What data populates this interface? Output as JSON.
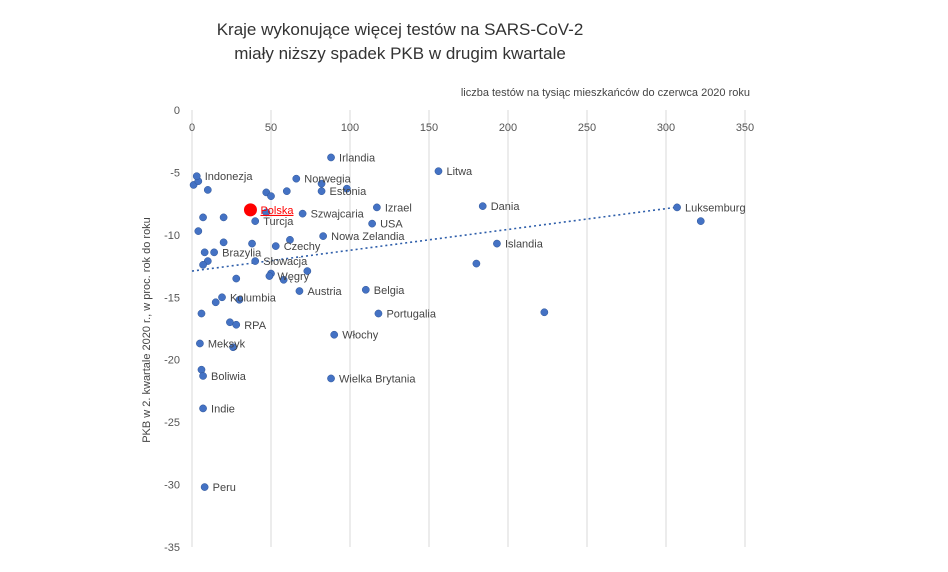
{
  "chart_data": {
    "type": "scatter",
    "title_lines": [
      "Kraje wykonujące więcej testów na SARS-CoV-2",
      "miały niższy spadek PKB w drugim kwartale"
    ],
    "xlabel": "liczba testów na tysiąc mieszkańców do czerwca 2020 roku",
    "ylabel": "PKB w 2. kwartale 2020 r., w proc. rok do roku",
    "xlim": [
      0,
      350
    ],
    "ylim": [
      -35,
      0
    ],
    "xticks": [
      0,
      50,
      100,
      150,
      200,
      250,
      300,
      350
    ],
    "yticks": [
      0,
      -5,
      -10,
      -15,
      -20,
      -25,
      -30,
      -35
    ],
    "grid": "vertical",
    "colors": {
      "point": "#4472C4",
      "highlight": "#FF0000",
      "trend": "#2E5EAA",
      "grid": "#D9D9D9"
    },
    "trendline": {
      "x": [
        0,
        306
      ],
      "y": [
        -12.9,
        -7.8
      ]
    },
    "labeled_points": [
      {
        "name": "Irlandia",
        "x": 88,
        "y": -3.8
      },
      {
        "name": "Litwa",
        "x": 156,
        "y": -4.9
      },
      {
        "name": "Indonezja",
        "x": 3,
        "y": -5.3
      },
      {
        "name": "Norwegia",
        "x": 66,
        "y": -5.5
      },
      {
        "name": "Estonia",
        "x": 82,
        "y": -6.5
      },
      {
        "name": "Izrael",
        "x": 117,
        "y": -7.8
      },
      {
        "name": "Dania",
        "x": 184,
        "y": -7.7
      },
      {
        "name": "Luksemburg",
        "x": 307,
        "y": -7.8
      },
      {
        "name": "Szwajcaria",
        "x": 70,
        "y": -8.3
      },
      {
        "name": "Turcja",
        "x": 40,
        "y": -8.9
      },
      {
        "name": "USA",
        "x": 114,
        "y": -9.1
      },
      {
        "name": "Nowa Zelandia",
        "x": 83,
        "y": -10.1
      },
      {
        "name": "Islandia",
        "x": 193,
        "y": -10.7
      },
      {
        "name": "Czechy",
        "x": 53,
        "y": -10.9
      },
      {
        "name": "Brazylia",
        "x": 14,
        "y": -11.4
      },
      {
        "name": "Słowacja",
        "x": 40,
        "y": -12.1
      },
      {
        "name": "Węgry",
        "x": 49,
        "y": -13.3
      },
      {
        "name": "Austria",
        "x": 68,
        "y": -14.5
      },
      {
        "name": "Belgia",
        "x": 110,
        "y": -14.4
      },
      {
        "name": "Kolumbia",
        "x": 19,
        "y": -15.0
      },
      {
        "name": "Portugalia",
        "x": 118,
        "y": -16.3
      },
      {
        "name": "RPA",
        "x": 28,
        "y": -17.2
      },
      {
        "name": "Włochy",
        "x": 90,
        "y": -18.0
      },
      {
        "name": "Meksyk",
        "x": 5,
        "y": -18.7
      },
      {
        "name": "Boliwia",
        "x": 7,
        "y": -21.3
      },
      {
        "name": "Wielka Brytania",
        "x": 88,
        "y": -21.5
      },
      {
        "name": "Indie",
        "x": 7,
        "y": -23.9
      },
      {
        "name": "Peru",
        "x": 8,
        "y": -30.2
      }
    ],
    "highlight_point": {
      "name": "Polska",
      "x": 37,
      "y": -8.0
    },
    "unlabeled_points": [
      {
        "x": 1,
        "y": -6.0
      },
      {
        "x": 4,
        "y": -5.7
      },
      {
        "x": 10,
        "y": -6.4
      },
      {
        "x": 47,
        "y": -6.6
      },
      {
        "x": 50,
        "y": -6.9
      },
      {
        "x": 60,
        "y": -6.5
      },
      {
        "x": 82,
        "y": -5.9
      },
      {
        "x": 98,
        "y": -6.3
      },
      {
        "x": 7,
        "y": -8.6
      },
      {
        "x": 20,
        "y": -8.6
      },
      {
        "x": 47,
        "y": -8.2
      },
      {
        "x": 4,
        "y": -9.7
      },
      {
        "x": 20,
        "y": -10.6
      },
      {
        "x": 38,
        "y": -10.7
      },
      {
        "x": 62,
        "y": -10.4
      },
      {
        "x": 8,
        "y": -11.4
      },
      {
        "x": 10,
        "y": -12.1
      },
      {
        "x": 7,
        "y": -12.4
      },
      {
        "x": 28,
        "y": -13.5
      },
      {
        "x": 50,
        "y": -13.1
      },
      {
        "x": 58,
        "y": -13.6
      },
      {
        "x": 73,
        "y": -12.9
      },
      {
        "x": 15,
        "y": -15.4
      },
      {
        "x": 30,
        "y": -15.2
      },
      {
        "x": 24,
        "y": -17.0
      },
      {
        "x": 6,
        "y": -16.3
      },
      {
        "x": 26,
        "y": -19.0
      },
      {
        "x": 6,
        "y": -20.8
      },
      {
        "x": 180,
        "y": -12.3
      },
      {
        "x": 223,
        "y": -16.2
      },
      {
        "x": 322,
        "y": -8.9
      }
    ]
  }
}
